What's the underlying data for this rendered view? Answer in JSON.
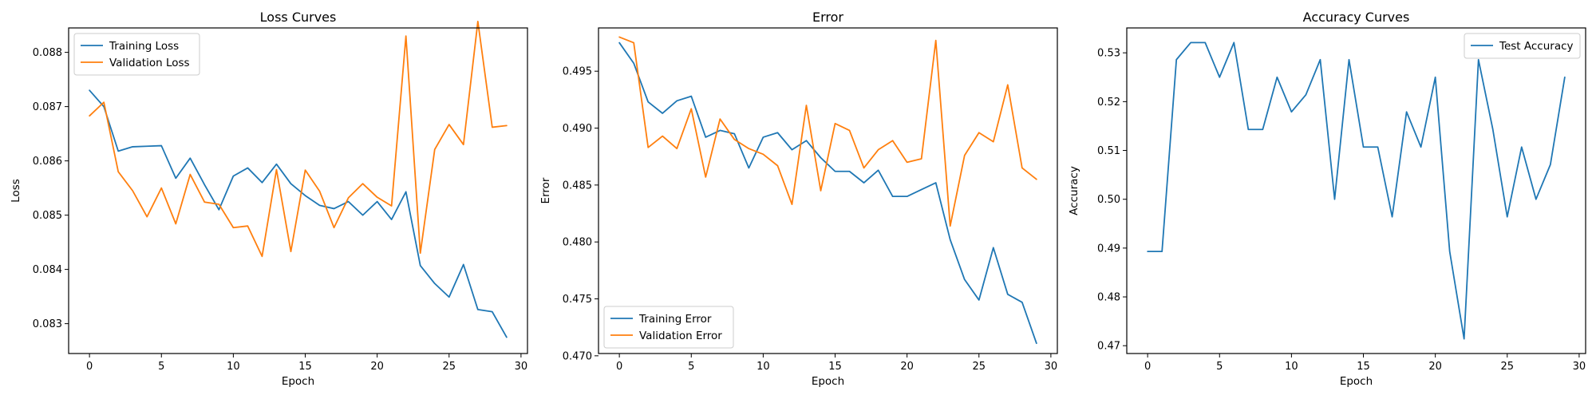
{
  "colors": {
    "training": "#1f77b4",
    "validation": "#ff7f0e"
  },
  "chart_data": [
    {
      "type": "line",
      "title": "Loss Curves",
      "xlabel": "Epoch",
      "ylabel": "Loss",
      "xlim": [
        -1.45,
        30.45
      ],
      "ylim": [
        0.08245,
        0.08845
      ],
      "xticks": [
        0,
        5,
        10,
        15,
        20,
        25,
        30
      ],
      "xtick_labels": [
        "0",
        "5",
        "10",
        "15",
        "20",
        "25",
        "30"
      ],
      "yticks": [
        0.083,
        0.084,
        0.085,
        0.086,
        0.087,
        0.088
      ],
      "ytick_labels": [
        "0.083",
        "0.084",
        "0.085",
        "0.086",
        "0.087",
        "0.088"
      ],
      "legend_position": "top-left",
      "x": [
        0,
        1,
        2,
        3,
        4,
        5,
        6,
        7,
        8,
        9,
        10,
        11,
        12,
        13,
        14,
        15,
        16,
        17,
        18,
        19,
        20,
        21,
        22,
        23,
        24,
        25,
        26,
        27,
        28,
        29
      ],
      "series": [
        {
          "name": "Training Loss",
          "color": "#1f77b4",
          "values": [
            0.0873,
            0.087,
            0.08618,
            0.08626,
            0.08627,
            0.08628,
            0.08568,
            0.08605,
            0.08556,
            0.0851,
            0.08572,
            0.08587,
            0.0856,
            0.08594,
            0.08558,
            0.08536,
            0.08518,
            0.08512,
            0.08525,
            0.085,
            0.08525,
            0.08492,
            0.08543,
            0.08407,
            0.08374,
            0.08349,
            0.08409,
            0.08326,
            0.08322,
            0.08275
          ]
        },
        {
          "name": "Validation Loss",
          "color": "#ff7f0e",
          "values": [
            0.08683,
            0.08708,
            0.0858,
            0.08545,
            0.08497,
            0.0855,
            0.08484,
            0.08575,
            0.08524,
            0.0852,
            0.08477,
            0.0848,
            0.08424,
            0.08584,
            0.08433,
            0.08583,
            0.08544,
            0.08477,
            0.08532,
            0.08558,
            0.08533,
            0.08517,
            0.0883,
            0.0843,
            0.08621,
            0.08667,
            0.0863,
            0.08857,
            0.08662,
            0.08665
          ]
        }
      ]
    },
    {
      "type": "line",
      "title": "Error",
      "xlabel": "Epoch",
      "ylabel": "Error",
      "xlim": [
        -1.45,
        30.45
      ],
      "ylim": [
        0.4702,
        0.4988
      ],
      "xticks": [
        0,
        5,
        10,
        15,
        20,
        25,
        30
      ],
      "xtick_labels": [
        "0",
        "5",
        "10",
        "15",
        "20",
        "25",
        "30"
      ],
      "yticks": [
        0.47,
        0.475,
        0.48,
        0.485,
        0.49,
        0.495
      ],
      "ytick_labels": [
        "0.470",
        "0.475",
        "0.480",
        "0.485",
        "0.490",
        "0.495"
      ],
      "legend_position": "bottom-left",
      "x": [
        0,
        1,
        2,
        3,
        4,
        5,
        6,
        7,
        8,
        9,
        10,
        11,
        12,
        13,
        14,
        15,
        16,
        17,
        18,
        19,
        20,
        21,
        22,
        23,
        24,
        25,
        26,
        27,
        28,
        29
      ],
      "series": [
        {
          "name": "Training Error",
          "color": "#1f77b4",
          "values": [
            0.4975,
            0.4957,
            0.4923,
            0.4913,
            0.4924,
            0.4928,
            0.4892,
            0.4898,
            0.4895,
            0.4865,
            0.4892,
            0.4896,
            0.4881,
            0.4889,
            0.4874,
            0.4862,
            0.4862,
            0.4852,
            0.4863,
            0.484,
            0.484,
            0.4846,
            0.4852,
            0.4802,
            0.4767,
            0.4749,
            0.4795,
            0.4754,
            0.4747,
            0.4711
          ]
        },
        {
          "name": "Validation Error",
          "color": "#ff7f0e",
          "values": [
            0.498,
            0.4975,
            0.4883,
            0.4893,
            0.4882,
            0.4917,
            0.4857,
            0.4908,
            0.489,
            0.4882,
            0.4877,
            0.4867,
            0.4833,
            0.492,
            0.4845,
            0.4904,
            0.4898,
            0.4865,
            0.4881,
            0.4889,
            0.487,
            0.4873,
            0.4977,
            0.4814,
            0.4876,
            0.4896,
            0.4888,
            0.4938,
            0.4865,
            0.4855
          ]
        }
      ]
    },
    {
      "type": "line",
      "title": "Accuracy Curves",
      "xlabel": "Epoch",
      "ylabel": "Accuracy",
      "xlim": [
        -1.45,
        30.45
      ],
      "ylim": [
        0.4684,
        0.5351
      ],
      "xticks": [
        0,
        5,
        10,
        15,
        20,
        25,
        30
      ],
      "xtick_labels": [
        "0",
        "5",
        "10",
        "15",
        "20",
        "25",
        "30"
      ],
      "yticks": [
        0.47,
        0.48,
        0.49,
        0.5,
        0.51,
        0.52,
        0.53
      ],
      "ytick_labels": [
        "0.47",
        "0.48",
        "0.49",
        "0.50",
        "0.51",
        "0.52",
        "0.53"
      ],
      "legend_position": "top-right",
      "x": [
        0,
        1,
        2,
        3,
        4,
        5,
        6,
        7,
        8,
        9,
        10,
        11,
        12,
        13,
        14,
        15,
        16,
        17,
        18,
        19,
        20,
        21,
        22,
        23,
        24,
        25,
        26,
        27,
        28,
        29
      ],
      "series": [
        {
          "name": "Test Accuracy",
          "color": "#1f77b4",
          "values": [
            0.4893,
            0.4893,
            0.5286,
            0.5321,
            0.5321,
            0.525,
            0.5321,
            0.5143,
            0.5143,
            0.525,
            0.5179,
            0.5214,
            0.5286,
            0.5,
            0.5286,
            0.5107,
            0.5107,
            0.4964,
            0.5179,
            0.5107,
            0.525,
            0.4893,
            0.4714,
            0.5286,
            0.5143,
            0.4964,
            0.5107,
            0.5,
            0.5071,
            0.525
          ]
        }
      ]
    }
  ]
}
